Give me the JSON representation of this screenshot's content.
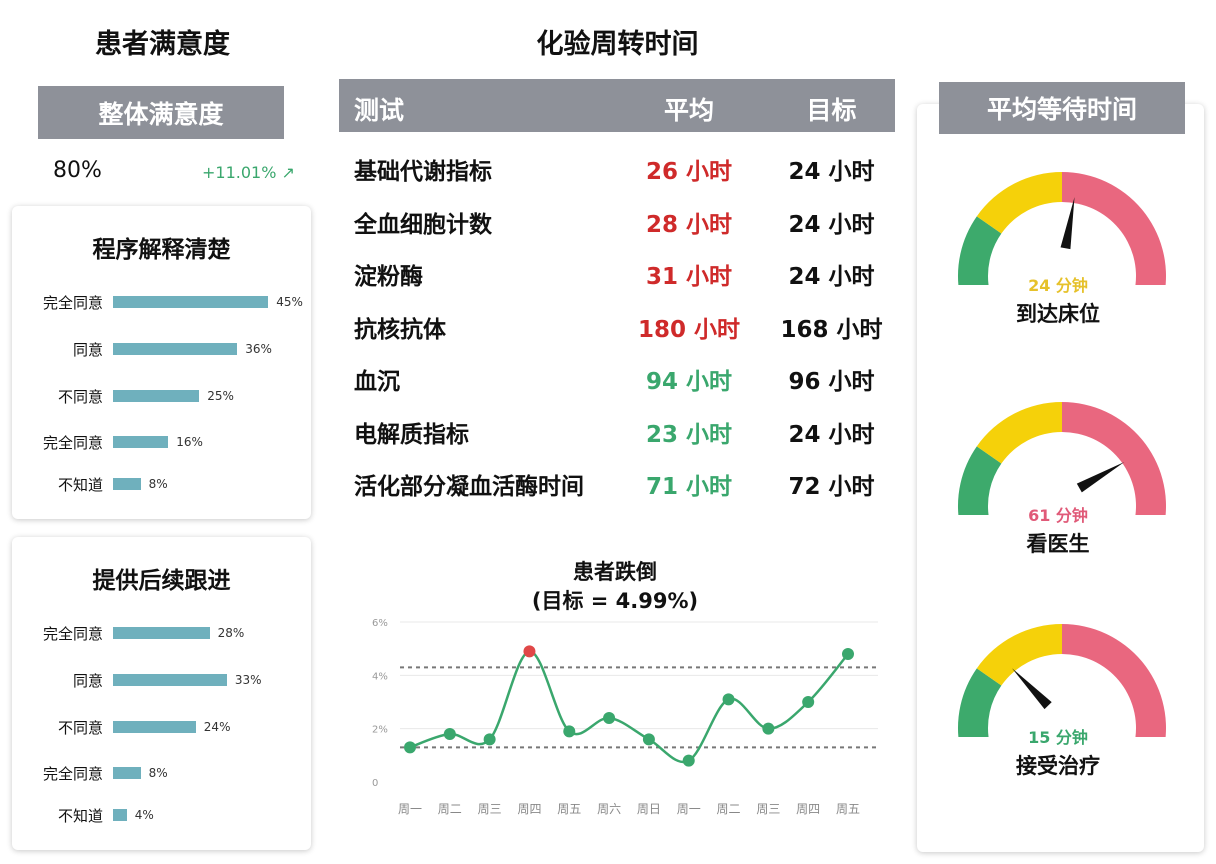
{
  "satisfaction": {
    "title": "患者满意度",
    "overall_header": "整体满意度",
    "overall_value": "80%",
    "overall_change": "+11.01% ↗",
    "cards": [
      {
        "title": "程序解释清楚",
        "rows": [
          {
            "label": "完全同意",
            "value": 45,
            "pct": "45%"
          },
          {
            "label": "同意",
            "value": 36,
            "pct": "36%"
          },
          {
            "label": "不同意",
            "value": 25,
            "pct": "25%"
          },
          {
            "label": "完全同意",
            "value": 16,
            "pct": "16%"
          },
          {
            "label": "不知道",
            "value": 8,
            "pct": "8%"
          }
        ]
      },
      {
        "title": "提供后续跟进",
        "rows": [
          {
            "label": "完全同意",
            "value": 28,
            "pct": "28%"
          },
          {
            "label": "同意",
            "value": 33,
            "pct": "33%"
          },
          {
            "label": "不同意",
            "value": 24,
            "pct": "24%"
          },
          {
            "label": "完全同意",
            "value": 8,
            "pct": "8%"
          },
          {
            "label": "不知道",
            "value": 4,
            "pct": "4%"
          }
        ]
      }
    ]
  },
  "lab": {
    "title": "化验周转时间",
    "columns": {
      "test": "测试",
      "avg": "平均",
      "goal": "目标"
    },
    "rows": [
      {
        "test": "基础代谢指标",
        "avg": "26 小时",
        "goal": "24 小时",
        "status": "red"
      },
      {
        "test": "全血细胞计数",
        "avg": "28 小时",
        "goal": "24 小时",
        "status": "red"
      },
      {
        "test": "淀粉酶",
        "avg": "31 小时",
        "goal": "24 小时",
        "status": "red"
      },
      {
        "test": "抗核抗体",
        "avg": "180 小时",
        "goal": "168 小时",
        "status": "red"
      },
      {
        "test": "血沉",
        "avg": "94 小时",
        "goal": "96 小时",
        "status": "green"
      },
      {
        "test": "电解质指标",
        "avg": "23 小时",
        "goal": "24 小时",
        "status": "green"
      },
      {
        "test": "活化部分凝血活酶时间",
        "avg": "71 小时",
        "goal": "72 小时",
        "status": "green"
      }
    ]
  },
  "falls": {
    "title": "患者跌倒",
    "subtitle": "(目标 = 4.99%)"
  },
  "wait": {
    "title": "平均等待时间",
    "gauges": [
      {
        "value": "24 分钟",
        "label": "到达床位",
        "level": 0.55,
        "value_color": "#e6c12a"
      },
      {
        "value": "61 分钟",
        "label": "看医生",
        "level": 0.8,
        "value_color": "#e05a78"
      },
      {
        "value": "15 分钟",
        "label": "接受治疗",
        "level": 0.28,
        "value_color": "#3aa76d"
      }
    ],
    "colors": {
      "green": "#3daa6c",
      "yellow": "#f5d10a",
      "red": "#e9677f",
      "needle": "#111111"
    }
  },
  "chart_data": {
    "type": "line",
    "title": "患者跌倒",
    "subtitle": "(目标 = 4.99%)",
    "categories": [
      "周一",
      "周二",
      "周三",
      "周四",
      "周五",
      "周六",
      "周日",
      "周一",
      "周二",
      "周三",
      "周四",
      "周五"
    ],
    "x": [
      0,
      1,
      2,
      3,
      4,
      5,
      6,
      7,
      8,
      9,
      10,
      11
    ],
    "y_values": [
      1.3,
      1.8,
      1.6,
      4.9,
      1.9,
      2.4,
      1.6,
      0.8,
      3.1,
      2.0,
      3.0,
      4.8
    ],
    "yticks": [
      "0",
      "2%",
      "4%",
      "6%"
    ],
    "ylim": [
      0,
      6
    ],
    "reference_lines": [
      4.3,
      1.3
    ],
    "highlight_index": 3,
    "colors": {
      "line": "#3aa76d",
      "highlight": "#e04848",
      "grid": "#e8e8e8",
      "ref": "#777777"
    },
    "xlabel": "",
    "ylabel": ""
  }
}
